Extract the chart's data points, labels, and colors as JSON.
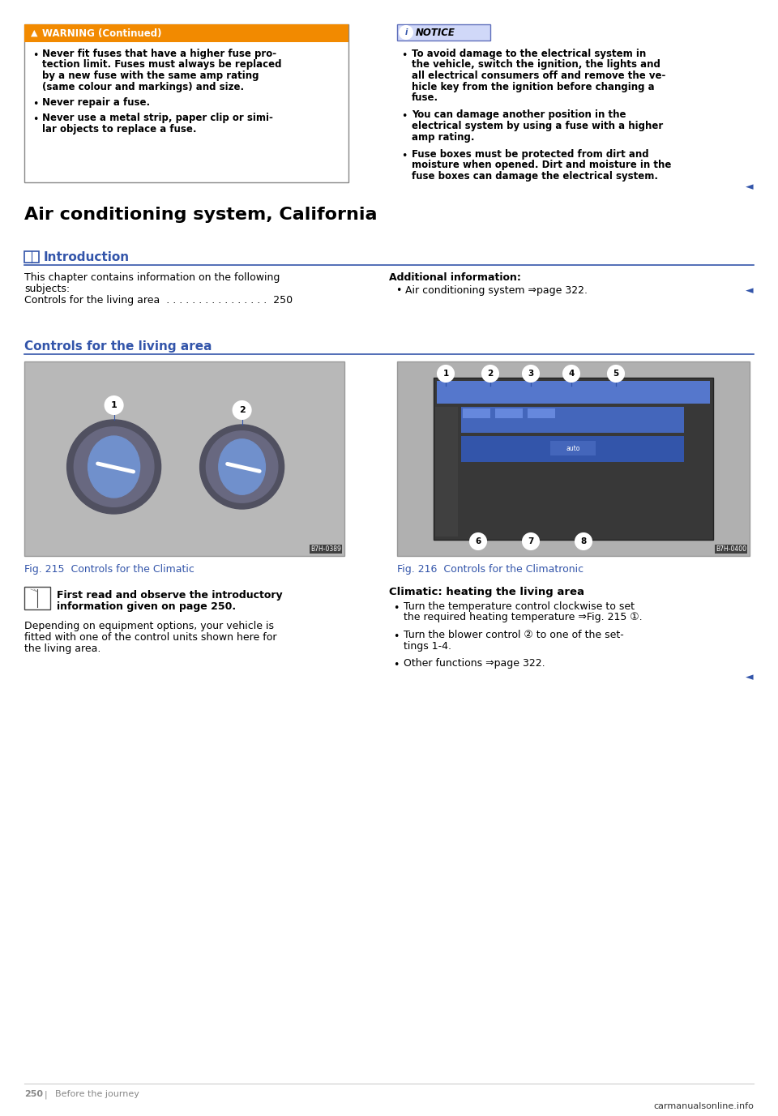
{
  "bg_color": "#ffffff",
  "page_width": 9.6,
  "page_height": 13.77,
  "dpi": 100,
  "warning_box": {
    "title_bg": "#f28a00",
    "title_color": "#ffffff",
    "border_color": "#999999",
    "bg_color": "#ffffff",
    "title_text": "WARNING (Continued)",
    "bullets": [
      "Never fit fuses that have a higher fuse pro-\ntection limit. Fuses must always be replaced\nby a new fuse with the same amp rating\n(same colour and markings) and size.",
      "Never repair a fuse.",
      "Never use a metal strip, paper clip or simi-\nlar objects to replace a fuse."
    ]
  },
  "notice_box": {
    "title_text": "NOTICE",
    "title_bg": "#d0d8f8",
    "title_border": "#6070bb",
    "bullets": [
      "To avoid damage to the electrical system in\nthe vehicle, switch the ignition, the lights and\nall electrical consumers off and remove the ve-\nhicle key from the ignition before changing a\nfuse.",
      "You can damage another position in the\nelectrical system by using a fuse with a higher\namp rating.",
      "Fuse boxes must be protected from dirt and\nmoisture when opened. Dirt and moisture in the\nfuse boxes can damage the electrical system."
    ]
  },
  "section_title": "Air conditioning system, California",
  "intro_heading": "Introduction",
  "intro_heading_color": "#3355aa",
  "intro_left_lines": [
    "This chapter contains information on the following",
    "subjects:",
    "Controls for the living area  . . . . . . . . . . . . . . . .  250"
  ],
  "intro_right_bold": "Additional information:",
  "intro_right_bullet": "Air conditioning system ⇒page 322.",
  "controls_heading": "Controls for the living area",
  "controls_heading_color": "#3355aa",
  "fig215_caption": "Fig. 215  Controls for the Climatic",
  "fig216_caption": "Fig. 216  Controls for the Climatronic",
  "caption_color": "#3355aa",
  "book_bold_text": "First read and observe the introductory\ninformation given on page 250.",
  "left_para_lines": [
    "Depending on equipment options, your vehicle is",
    "fitted with one of the control units shown here for",
    "the living area."
  ],
  "right_bold_heading": "Climatic: heating the living area",
  "right_bullets": [
    "Turn the temperature control clockwise to set\nthe required heating temperature ⇒Fig. 215 ①.",
    "Turn the blower control ② to one of the set-\ntings 1-4.",
    "Other functions ⇒page 322."
  ],
  "blue_color": "#3355aa",
  "line_color": "#3355aa",
  "footer_page": "250",
  "footer_text": "Before the journey",
  "footer_color": "#888888",
  "watermark": "carmanualsonline.info"
}
